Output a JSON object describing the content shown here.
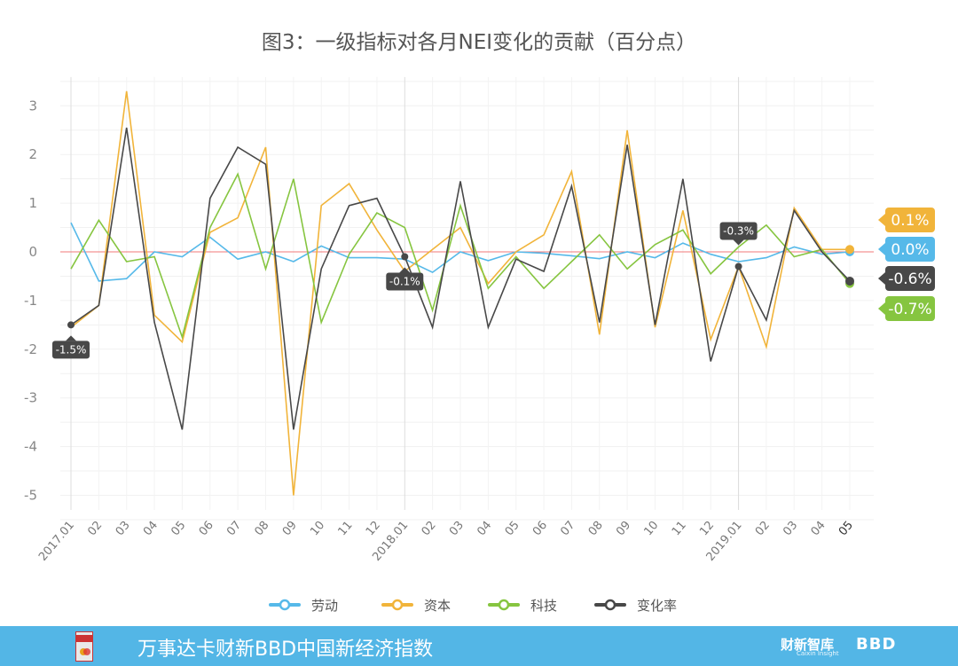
{
  "chart_data": {
    "type": "line",
    "title": "图3：一级指标对各月NEI变化的贡献（百分点）",
    "ylim": [
      -5.5,
      3.5
    ],
    "yticks": [
      3,
      2,
      1,
      0,
      -1,
      -2,
      -3,
      -4,
      -5
    ],
    "x": [
      "2017.01",
      "02",
      "03",
      "04",
      "05",
      "06",
      "07",
      "08",
      "09",
      "10",
      "11",
      "12",
      "2018.01",
      "02",
      "03",
      "04",
      "05",
      "06",
      "07",
      "08",
      "09",
      "10",
      "11",
      "12",
      "2019.01",
      "02",
      "03",
      "04",
      "05"
    ],
    "series": [
      {
        "name": "劳动",
        "color": "#56b9e9",
        "width": 1.6,
        "values": [
          0.6,
          -0.6,
          -0.55,
          0,
          -0.1,
          0.3,
          -0.15,
          0,
          -0.2,
          0.12,
          -0.12,
          -0.12,
          -0.15,
          -0.42,
          0,
          -0.18,
          0,
          -0.03,
          -0.08,
          -0.14,
          0,
          -0.12,
          0.18,
          -0.05,
          -0.2,
          -0.12,
          0.1,
          -0.05,
          0.0
        ]
      },
      {
        "name": "资本",
        "color": "#f1b43a",
        "width": 1.6,
        "values": [
          -1.55,
          -1.1,
          3.3,
          -1.3,
          -1.85,
          0.4,
          0.7,
          2.15,
          -5.0,
          0.95,
          1.4,
          0.45,
          -0.4,
          0.05,
          0.5,
          -0.65,
          0,
          0.35,
          1.65,
          -1.7,
          2.5,
          -1.55,
          0.85,
          -1.8,
          -0.3,
          -1.95,
          0.9,
          0.05,
          0.05
        ]
      },
      {
        "name": "科技",
        "color": "#86c540",
        "width": 1.6,
        "values": [
          -0.35,
          0.65,
          -0.2,
          -0.1,
          -1.75,
          0.5,
          1.6,
          -0.35,
          1.5,
          -1.45,
          -0.05,
          0.8,
          0.5,
          -1.2,
          0.95,
          -0.75,
          -0.1,
          -0.75,
          -0.2,
          0.35,
          -0.35,
          0.15,
          0.45,
          -0.45,
          0.1,
          0.55,
          -0.1,
          0.05,
          -0.65
        ]
      },
      {
        "name": "变化率",
        "color": "#484848",
        "width": 1.6,
        "values": [
          -1.5,
          -1.1,
          2.55,
          -1.45,
          -3.65,
          1.1,
          2.15,
          1.8,
          -3.65,
          -0.35,
          0.95,
          1.1,
          -0.1,
          -1.55,
          1.45,
          -1.55,
          -0.15,
          -0.4,
          1.35,
          -1.45,
          2.2,
          -1.5,
          1.5,
          -2.25,
          -0.3,
          -1.4,
          0.85,
          0.0,
          -0.6
        ]
      }
    ],
    "point_labels": [
      {
        "x_index": 0,
        "text": "-1.5%"
      },
      {
        "x_index": 12,
        "text": "-0.1%"
      },
      {
        "x_index": 24,
        "text": "-0.3%"
      }
    ],
    "end_labels": [
      {
        "series": "资本",
        "text": "0.1%",
        "color": "#f1b43a"
      },
      {
        "series": "劳动",
        "text": "0.0%",
        "color": "#56b9e9"
      },
      {
        "series": "变化率",
        "text": "-0.6%",
        "color": "#484848"
      },
      {
        "series": "科技",
        "text": "-0.7%",
        "color": "#86c540"
      }
    ],
    "legend": [
      "劳动",
      "资本",
      "科技",
      "变化率"
    ]
  },
  "footer": {
    "title": "万事达卡财新BBD中国新经济指数",
    "logo_icon": "nei-card-logo-icon",
    "brand_main": "财新智库",
    "brand_sub": "Caixin Insight",
    "brand_bbd": "BBD"
  }
}
